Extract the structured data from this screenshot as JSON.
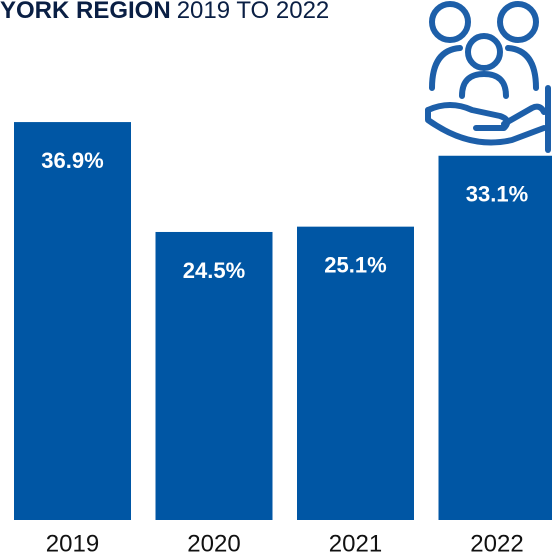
{
  "chart_data": {
    "type": "bar",
    "title": "YORK REGION",
    "subtitle": "2019 TO 2022",
    "categories": [
      "2019",
      "2020",
      "2021",
      "2022"
    ],
    "values": [
      36.9,
      24.5,
      25.1,
      33.1
    ],
    "value_labels": [
      "36.9%",
      "24.5%",
      "25.1%",
      "33.1%"
    ],
    "color": "#0056a4",
    "ylim": [
      -8,
      40
    ]
  }
}
